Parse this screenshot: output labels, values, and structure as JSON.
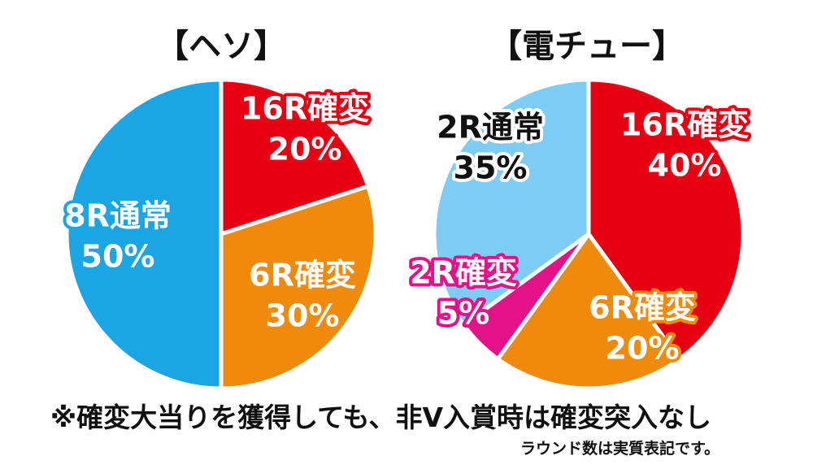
{
  "chart_data": [
    {
      "type": "pie",
      "title": "【ヘソ】",
      "slices": [
        {
          "label": "16R確変",
          "value": 20,
          "value_label": "20%",
          "color": "#e60012",
          "text_color": "#ffffff",
          "outline_color": "#e60012"
        },
        {
          "label": "6R確変",
          "value": 30,
          "value_label": "30%",
          "color": "#f08a0c",
          "text_color": "#ffffff",
          "outline_color": "#f08a0c"
        },
        {
          "label": "8R通常",
          "value": 50,
          "value_label": "50%",
          "color": "#1aa6e4",
          "text_color": "#ffffff",
          "outline_color": "#1aa6e4"
        }
      ]
    },
    {
      "type": "pie",
      "title": "【電チュー】",
      "slices": [
        {
          "label": "16R確変",
          "value": 40,
          "value_label": "40%",
          "color": "#e60012",
          "text_color": "#ffffff",
          "outline_color": "#e60012"
        },
        {
          "label": "6R確変",
          "value": 20,
          "value_label": "20%",
          "color": "#f08a0c",
          "text_color": "#ffffff",
          "outline_color": "#f08a0c"
        },
        {
          "label": "2R確変",
          "value": 5,
          "value_label": "5%",
          "color": "#e4118b",
          "text_color": "#ffffff",
          "outline_color": "#e4118b"
        },
        {
          "label": "2R通常",
          "value": 35,
          "value_label": "35%",
          "color": "#7dccf3",
          "text_color": "#111111",
          "outline_color": "#ffffff"
        }
      ]
    }
  ],
  "note": "※確変大当りを獲得しても、非V入賞時は確変突入なし",
  "footnote": "ラウンド数は実質表記です。"
}
